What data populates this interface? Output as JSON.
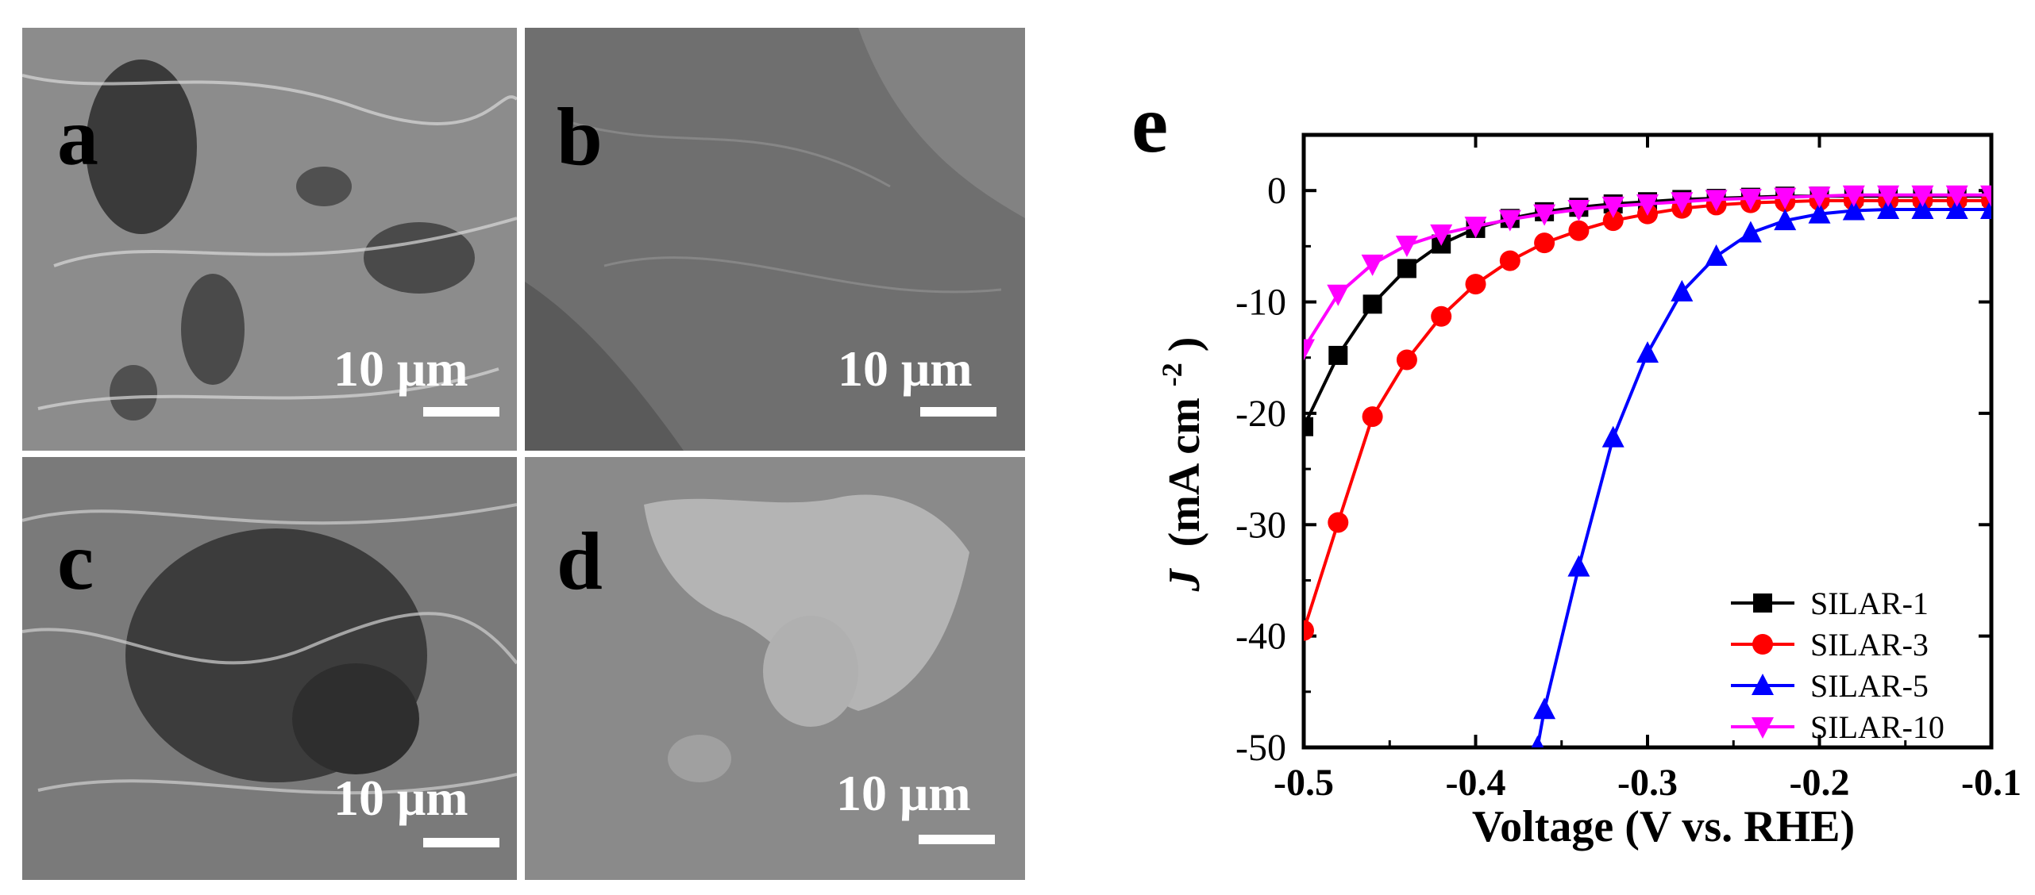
{
  "figure": {
    "sem_panels": [
      {
        "label": "a",
        "scale_bar_text": "10 μm",
        "tone": "#8c8c8c"
      },
      {
        "label": "b",
        "scale_bar_text": "10 μm",
        "tone": "#6f6f6f"
      },
      {
        "label": "c",
        "scale_bar_text": "10 μm",
        "tone": "#7a7a7a"
      },
      {
        "label": "d",
        "scale_bar_text": "10 μm",
        "tone": "#8a8a8a"
      }
    ],
    "chart_panel_label": "e"
  },
  "chart_data": {
    "type": "line",
    "xlabel": "Voltage (V vs. RHE)",
    "ylabel": "J (mA cm-2)",
    "ylabel_parts": {
      "var": "J",
      "unit": "(mA cm",
      "exp": "-2",
      "close": ")"
    },
    "xlim": [
      -0.5,
      -0.1
    ],
    "ylim": [
      -50,
      5
    ],
    "xticks": [
      -0.5,
      -0.4,
      -0.3,
      -0.2,
      -0.1
    ],
    "xtick_labels": [
      "-0.5",
      "-0.4",
      "-0.3",
      "-0.2",
      "-0.1"
    ],
    "yticks": [
      0,
      -10,
      -20,
      -30,
      -40,
      -50
    ],
    "ytick_labels": [
      "0",
      "-10",
      "-20",
      "-30",
      "-40",
      "-50"
    ],
    "grid": false,
    "legend_position": "bottom-right",
    "series": [
      {
        "name": "SILAR-1",
        "color": "#000000",
        "marker": "square",
        "x": [
          -0.5,
          -0.48,
          -0.46,
          -0.44,
          -0.42,
          -0.4,
          -0.38,
          -0.36,
          -0.34,
          -0.32,
          -0.3,
          -0.28,
          -0.26,
          -0.24,
          -0.22,
          -0.2,
          -0.18,
          -0.16,
          -0.14,
          -0.12,
          -0.1
        ],
        "y": [
          -21.2,
          -14.8,
          -10.2,
          -7.0,
          -4.8,
          -3.4,
          -2.5,
          -1.9,
          -1.5,
          -1.2,
          -1.0,
          -0.8,
          -0.7,
          -0.6,
          -0.5,
          -0.5,
          -0.5,
          -0.5,
          -0.5,
          -0.5,
          -0.5
        ]
      },
      {
        "name": "SILAR-3",
        "color": "#ff0000",
        "marker": "circle",
        "x": [
          -0.5,
          -0.48,
          -0.46,
          -0.44,
          -0.42,
          -0.4,
          -0.38,
          -0.36,
          -0.34,
          -0.32,
          -0.3,
          -0.28,
          -0.26,
          -0.24,
          -0.22,
          -0.2,
          -0.18,
          -0.16,
          -0.14,
          -0.12,
          -0.1
        ],
        "y": [
          -39.5,
          -29.8,
          -20.3,
          -15.2,
          -11.3,
          -8.4,
          -6.3,
          -4.7,
          -3.6,
          -2.7,
          -2.1,
          -1.6,
          -1.3,
          -1.1,
          -1.0,
          -0.9,
          -0.9,
          -0.9,
          -0.9,
          -0.9,
          -0.9
        ]
      },
      {
        "name": "SILAR-5",
        "color": "#0000ff",
        "marker": "triangle-up",
        "x": [
          -0.364,
          -0.36,
          -0.34,
          -0.32,
          -0.3,
          -0.28,
          -0.26,
          -0.24,
          -0.22,
          -0.2,
          -0.18,
          -0.16,
          -0.14,
          -0.12,
          -0.1
        ],
        "y": [
          -50,
          -46.6,
          -33.8,
          -22.2,
          -14.6,
          -9.1,
          -5.9,
          -3.8,
          -2.7,
          -2.1,
          -1.8,
          -1.7,
          -1.7,
          -1.7,
          -1.7
        ]
      },
      {
        "name": "SILAR-10",
        "color": "#ff00ff",
        "marker": "triangle-down",
        "x": [
          -0.5,
          -0.48,
          -0.46,
          -0.44,
          -0.42,
          -0.4,
          -0.38,
          -0.36,
          -0.34,
          -0.32,
          -0.3,
          -0.28,
          -0.26,
          -0.24,
          -0.22,
          -0.2,
          -0.18,
          -0.16,
          -0.14,
          -0.12,
          -0.1
        ],
        "y": [
          -14.2,
          -9.3,
          -6.6,
          -4.9,
          -3.9,
          -3.2,
          -2.6,
          -2.1,
          -1.7,
          -1.4,
          -1.2,
          -1.0,
          -0.8,
          -0.7,
          -0.6,
          -0.5,
          -0.4,
          -0.4,
          -0.4,
          -0.4,
          -0.4
        ]
      }
    ]
  }
}
